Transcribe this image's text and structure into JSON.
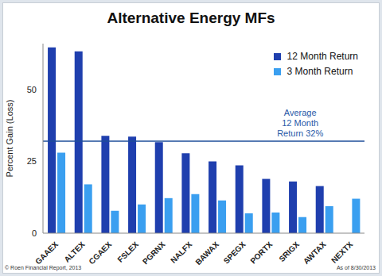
{
  "chart_data": {
    "type": "bar",
    "title": "Alternative Energy MFs",
    "y_label": "Percent Gain (Loss)",
    "categories": [
      "GAAEX",
      "ALTEX",
      "CGAEX",
      "FSLEX",
      "PGRNX",
      "NALFX",
      "BAWAX",
      "SPEGX",
      "PORTX",
      "SRIGX",
      "AWTAX",
      "NEXTX"
    ],
    "series": [
      {
        "name": "12 Month Return",
        "color": "#1f3fae",
        "values": [
          64.7,
          63.3,
          33.9,
          33.6,
          31.7,
          27.8,
          25,
          23.6,
          18.9,
          18,
          16.4,
          null
        ]
      },
      {
        "name": "3 Month Return",
        "color": "#3a9ff0",
        "values": [
          28,
          17,
          7.8,
          10,
          12.2,
          13.6,
          11.4,
          6.9,
          7.2,
          5.6,
          9.4,
          12
        ]
      }
    ],
    "ylim": [
      0,
      66
    ],
    "yticks": [
      0,
      25,
      50
    ],
    "grid": false,
    "legend": "upper right",
    "average": 32,
    "annotation": [
      "Average",
      "12 Month",
      "Return 32%"
    ],
    "footer_left": "© Roen Financial Report, 2013",
    "footer_right": "As of 8/30/2013"
  }
}
